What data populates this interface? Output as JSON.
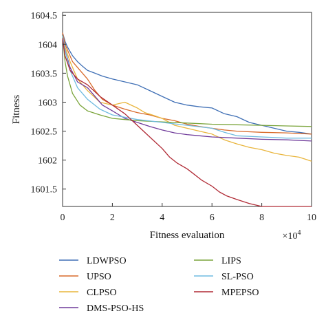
{
  "chart_data": {
    "type": "line",
    "title": "",
    "xlabel": "Fitness evaluation",
    "ylabel": "Fitness",
    "x_multiplier_label": "×10",
    "x_multiplier_exp": "4",
    "xlim": [
      0,
      10
    ],
    "ylim": [
      1601.2,
      1604.55
    ],
    "x_ticks": [
      0,
      2,
      4,
      6,
      8,
      10
    ],
    "x_tick_labels": [
      "0",
      "2",
      "4",
      "6",
      "8",
      "10"
    ],
    "y_ticks": [
      1601.5,
      1602,
      1602.5,
      1603,
      1603.5,
      1604,
      1604.5
    ],
    "y_tick_labels": [
      "1601.5",
      "1602",
      "1602.5",
      "1603",
      "1603.5",
      "1604",
      "1604.5"
    ],
    "grid": false,
    "legend_position": "bottom",
    "series": [
      {
        "name": "LDWPSO",
        "color": "#3f6fb5",
        "x": [
          0,
          0.1,
          0.2,
          0.4,
          0.6,
          0.8,
          1.0,
          1.3,
          1.6,
          2.0,
          2.5,
          3.0,
          3.5,
          4.0,
          4.5,
          5.0,
          5.5,
          6.0,
          6.5,
          7.0,
          7.5,
          8.0,
          8.5,
          9.0,
          9.5,
          10
        ],
        "y": [
          1604.2,
          1604.05,
          1603.95,
          1603.8,
          1603.7,
          1603.62,
          1603.55,
          1603.5,
          1603.45,
          1603.4,
          1603.35,
          1603.3,
          1603.2,
          1603.1,
          1603.0,
          1602.95,
          1602.92,
          1602.9,
          1602.8,
          1602.75,
          1602.65,
          1602.6,
          1602.55,
          1602.5,
          1602.48,
          1602.45
        ]
      },
      {
        "name": "UPSO",
        "color": "#d86a2a",
        "x": [
          0,
          0.1,
          0.2,
          0.4,
          0.7,
          1.0,
          1.3,
          1.6,
          2.0,
          2.5,
          3.0,
          3.5,
          4.0,
          4.5,
          5.0,
          5.5,
          6.0,
          6.5,
          7.0,
          8.0,
          9.0,
          10
        ],
        "y": [
          1604.2,
          1604.0,
          1603.9,
          1603.7,
          1603.55,
          1603.4,
          1603.2,
          1603.05,
          1602.95,
          1602.88,
          1602.82,
          1602.78,
          1602.72,
          1602.68,
          1602.62,
          1602.58,
          1602.55,
          1602.52,
          1602.5,
          1602.48,
          1602.47,
          1602.45
        ]
      },
      {
        "name": "CLPSO",
        "color": "#e9b53c",
        "x": [
          0,
          0.1,
          0.3,
          0.6,
          1.0,
          1.5,
          2.0,
          2.5,
          3.0,
          3.3,
          3.6,
          4.0,
          4.5,
          5.0,
          5.5,
          6.0,
          6.5,
          7.0,
          7.5,
          8.0,
          8.5,
          9.0,
          9.5,
          10
        ],
        "y": [
          1604.1,
          1603.95,
          1603.7,
          1603.4,
          1603.2,
          1603.0,
          1602.95,
          1603.0,
          1602.9,
          1602.82,
          1602.78,
          1602.72,
          1602.6,
          1602.55,
          1602.5,
          1602.45,
          1602.35,
          1602.28,
          1602.22,
          1602.18,
          1602.12,
          1602.08,
          1602.05,
          1601.98
        ]
      },
      {
        "name": "DMS-PSO-HS",
        "color": "#6f3a9a",
        "x": [
          0,
          0.1,
          0.3,
          0.6,
          1.0,
          1.3,
          1.6,
          2.0,
          2.5,
          3.0,
          3.5,
          4.0,
          4.5,
          5.0,
          5.5,
          6.0,
          7.0,
          8.0,
          9.0,
          10
        ],
        "y": [
          1604.15,
          1603.9,
          1603.6,
          1603.35,
          1603.25,
          1603.1,
          1602.95,
          1602.85,
          1602.72,
          1602.65,
          1602.58,
          1602.52,
          1602.47,
          1602.44,
          1602.42,
          1602.4,
          1602.38,
          1602.36,
          1602.35,
          1602.33
        ]
      },
      {
        "name": "LIPS",
        "color": "#7aa43a",
        "x": [
          0,
          0.1,
          0.2,
          0.4,
          0.7,
          1.0,
          1.5,
          2.0,
          2.5,
          3.0,
          4.0,
          5.0,
          6.0,
          7.0,
          8.0,
          9.0,
          10
        ],
        "y": [
          1604.15,
          1603.7,
          1603.45,
          1603.15,
          1602.95,
          1602.85,
          1602.78,
          1602.72,
          1602.7,
          1602.68,
          1602.66,
          1602.64,
          1602.62,
          1602.61,
          1602.6,
          1602.59,
          1602.58
        ]
      },
      {
        "name": "SL-PSO",
        "color": "#6fbbe0",
        "x": [
          0,
          0.1,
          0.3,
          0.6,
          1.0,
          1.5,
          2.0,
          3.0,
          4.0,
          5.0,
          6.0,
          6.5,
          7.0,
          8.0,
          9.0,
          10
        ],
        "y": [
          1604.15,
          1603.9,
          1603.55,
          1603.25,
          1603.05,
          1602.88,
          1602.78,
          1602.7,
          1602.65,
          1602.6,
          1602.55,
          1602.48,
          1602.42,
          1602.4,
          1602.38,
          1602.38
        ]
      },
      {
        "name": "MPEPSO",
        "color": "#b02a35",
        "x": [
          0,
          0.1,
          0.3,
          0.6,
          1.0,
          1.5,
          2.0,
          2.5,
          3.0,
          3.5,
          4.0,
          4.3,
          4.6,
          5.0,
          5.3,
          5.6,
          6.0,
          6.3,
          6.6,
          7.0,
          7.5,
          8.0,
          9.0,
          10
        ],
        "y": [
          1604.1,
          1603.8,
          1603.55,
          1603.4,
          1603.3,
          1603.1,
          1602.95,
          1602.8,
          1602.6,
          1602.4,
          1602.2,
          1602.05,
          1601.95,
          1601.85,
          1601.75,
          1601.65,
          1601.55,
          1601.45,
          1601.38,
          1601.32,
          1601.25,
          1601.2,
          1601.2,
          1601.2
        ]
      }
    ]
  }
}
